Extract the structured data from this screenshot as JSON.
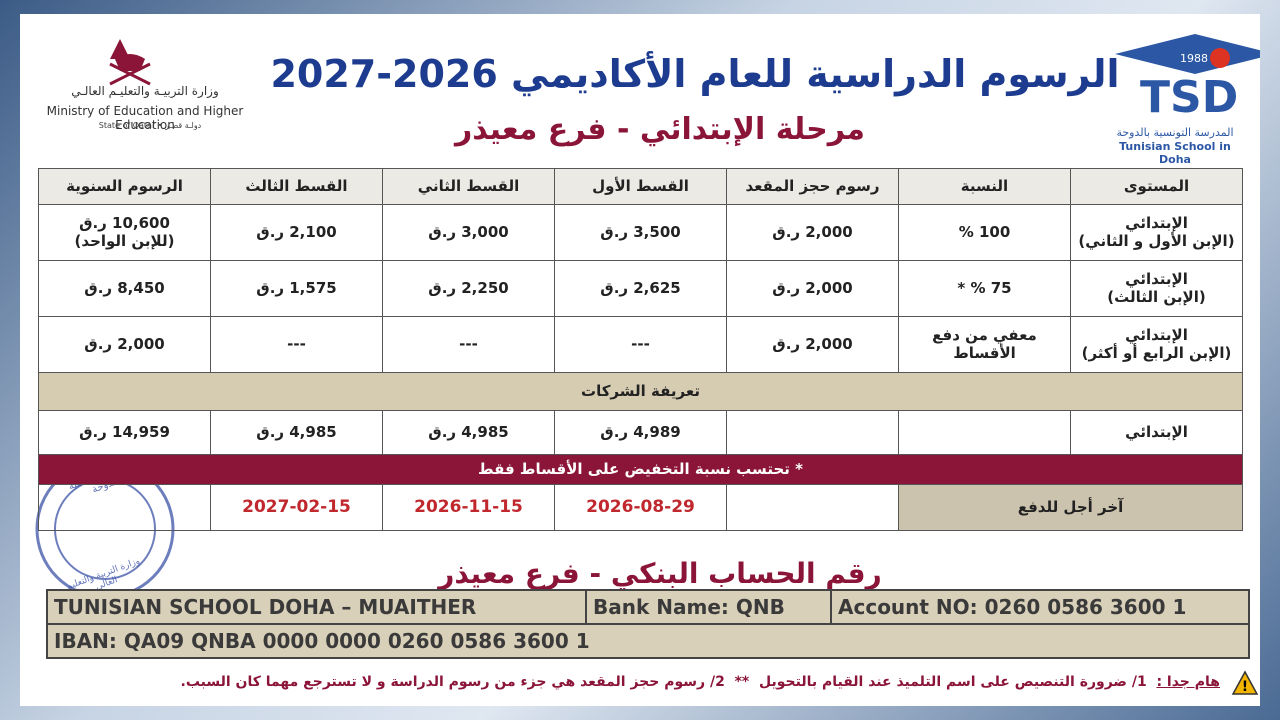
{
  "header": {
    "ministry_ar": "وزارة التربيـة والتعليـم العالـي",
    "ministry_en": "Ministry of Education and Higher Education",
    "state": "State of Qatar • دولـة قطـر",
    "title": "الرسوم الدراسية للعام الأكاديمي 2026-2027",
    "subtitle": "مرحلة الإبتدائي - فرع معيذر",
    "school_year": "1988",
    "school_abbr": "TSD",
    "school_ar": "المدرسة التونسية بالدوحة",
    "school_en": "Tunisian School in Doha"
  },
  "table": {
    "columns": [
      "المستوى",
      "النسبة",
      "رسوم حجز المقعد",
      "القسط الأول",
      "القسط الثاني",
      "القسط الثالث",
      "الرسوم السنوية"
    ],
    "rows": [
      [
        "الإبتدائي\n(الإبن الأول و الثاني)",
        "100 %",
        "2,000 ر.ق",
        "3,500 ر.ق",
        "3,000 ر.ق",
        "2,100 ر.ق",
        "10,600 ر.ق\n(للإبن الواحد)"
      ],
      [
        "الإبتدائي\n(الإبن الثالث)",
        "75 % *",
        "2,000 ر.ق",
        "2,625 ر.ق",
        "2,250 ر.ق",
        "1,575 ر.ق",
        "8,450 ر.ق"
      ],
      [
        "الإبتدائي\n(الإبن الرابع أو أكثر)",
        "معفي من دفع\nالأقساط",
        "2,000 ر.ق",
        "---",
        "---",
        "---",
        "2,000 ر.ق"
      ]
    ],
    "companies_title": "تعريفة الشركات",
    "companies_row": [
      "الإبتدائي",
      null,
      null,
      "4,989 ر.ق",
      "4,985 ر.ق",
      "4,985 ر.ق",
      "14,959 ر.ق"
    ],
    "note": "* تحتسب نسبة التخفيض على الأقساط فقط",
    "deadline": {
      "label": "آخر أجل للدفع",
      "dates": [
        "2026-08-29",
        "2026-11-15",
        "2027-02-15"
      ]
    }
  },
  "stamp": {
    "top": "المدرسة التونسية بالدوحة",
    "bottom": "وزارة التربية والتعليم العالي"
  },
  "bank": {
    "heading": "رقم الحساب البنكي - فرع معيذر",
    "name": "TUNISIAN SCHOOL DOHA – MUAITHER",
    "bank": "Bank Name: QNB",
    "account": "Account NO: 0260 0586 3600 1",
    "iban": "IBAN: QA09 QNBA 0000 0000 0260 0586 3600 1"
  },
  "footer": {
    "important": "هام جدا :",
    "notes": "1/ ضرورة التنصيص على اسم التلميذ عند القيام بالتحويل  **  2/ رسوم حجز المقعد هي جزء من رسوم الدراسة و لا تسترجع مهما كان السبب."
  }
}
